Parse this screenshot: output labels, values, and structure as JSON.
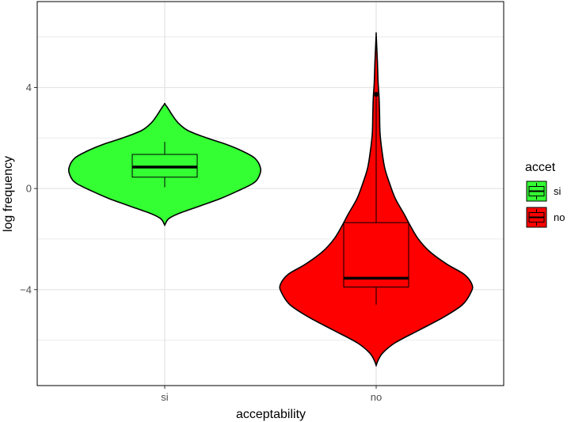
{
  "chart_data": {
    "type": "violin",
    "xlabel": "acceptability",
    "ylabel": "log frequency",
    "categories": [
      "si",
      "no"
    ],
    "y_ticks": [
      -4,
      0,
      4
    ],
    "y_tick_labels": [
      "-4",
      "0",
      "4"
    ],
    "ylim": [
      -7.8,
      7.4
    ],
    "grid": true,
    "legend": {
      "title": "accet",
      "position": "right",
      "entries": [
        {
          "label": "si",
          "color": "#33FF33"
        },
        {
          "label": "no",
          "color": "#FF0000"
        }
      ]
    },
    "series": [
      {
        "name": "si",
        "color": "#33FF33",
        "box": {
          "whisker_low": 0.05,
          "q1": 0.45,
          "median": 0.85,
          "q3": 1.35,
          "whisker_high": 1.85
        },
        "outliers": [],
        "violin_density": [
          {
            "y": -1.45,
            "w": 0.0
          },
          {
            "y": -1.2,
            "w": 0.04
          },
          {
            "y": -1.0,
            "w": 0.14
          },
          {
            "y": -0.7,
            "w": 0.36
          },
          {
            "y": -0.4,
            "w": 0.58
          },
          {
            "y": -0.1,
            "w": 0.76
          },
          {
            "y": 0.2,
            "w": 0.92
          },
          {
            "y": 0.45,
            "w": 0.98
          },
          {
            "y": 0.8,
            "w": 1.0
          },
          {
            "y": 1.2,
            "w": 0.94
          },
          {
            "y": 1.5,
            "w": 0.8
          },
          {
            "y": 1.75,
            "w": 0.64
          },
          {
            "y": 2.0,
            "w": 0.44
          },
          {
            "y": 2.3,
            "w": 0.24
          },
          {
            "y": 2.6,
            "w": 0.14
          },
          {
            "y": 2.9,
            "w": 0.08
          },
          {
            "y": 3.2,
            "w": 0.03
          },
          {
            "y": 3.35,
            "w": 0.0
          }
        ]
      },
      {
        "name": "no",
        "color": "#FF0000",
        "box": {
          "whisker_low": -4.6,
          "q1": -3.9,
          "median": -3.55,
          "q3": -1.35,
          "whisker_high": 3.6
        },
        "outliers": [
          3.7,
          3.75
        ],
        "violin_density": [
          {
            "y": -7.0,
            "w": 0.0
          },
          {
            "y": -6.8,
            "w": 0.02
          },
          {
            "y": -6.5,
            "w": 0.07
          },
          {
            "y": -6.1,
            "w": 0.2
          },
          {
            "y": -5.6,
            "w": 0.45
          },
          {
            "y": -5.1,
            "w": 0.7
          },
          {
            "y": -4.6,
            "w": 0.9
          },
          {
            "y": -4.1,
            "w": 0.99
          },
          {
            "y": -3.8,
            "w": 1.0
          },
          {
            "y": -3.4,
            "w": 0.92
          },
          {
            "y": -3.0,
            "w": 0.74
          },
          {
            "y": -2.5,
            "w": 0.56
          },
          {
            "y": -2.0,
            "w": 0.44
          },
          {
            "y": -1.5,
            "w": 0.36
          },
          {
            "y": -1.0,
            "w": 0.29
          },
          {
            "y": -0.4,
            "w": 0.2
          },
          {
            "y": 0.2,
            "w": 0.14
          },
          {
            "y": 0.8,
            "w": 0.09
          },
          {
            "y": 1.5,
            "w": 0.06
          },
          {
            "y": 2.2,
            "w": 0.04
          },
          {
            "y": 3.0,
            "w": 0.035
          },
          {
            "y": 3.6,
            "w": 0.03
          },
          {
            "y": 4.2,
            "w": 0.02
          },
          {
            "y": 5.0,
            "w": 0.013
          },
          {
            "y": 5.6,
            "w": 0.006
          },
          {
            "y": 6.1,
            "w": 0.0
          }
        ]
      }
    ]
  }
}
